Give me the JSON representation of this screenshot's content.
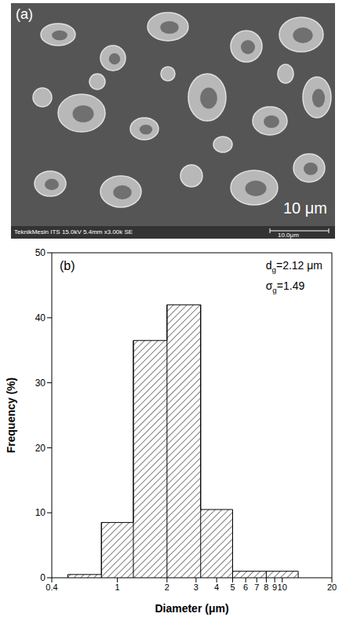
{
  "chart_data": {
    "type": "histogram",
    "title": "(b)",
    "x_label": "Diameter (μm)",
    "y_label": "Frequency (%)",
    "bins": [
      0.5,
      0.8,
      1.25,
      2,
      3.2,
      5,
      8,
      12.5
    ],
    "values": [
      0.5,
      8.5,
      36.5,
      42,
      10.5,
      1,
      1
    ],
    "xlim": [
      0.4,
      20
    ],
    "xticks": [
      0.4,
      1,
      2,
      3,
      4,
      5,
      6,
      7,
      8,
      9,
      10,
      20
    ],
    "ylim": [
      0,
      50
    ],
    "yticks": [
      0,
      10,
      20,
      30,
      40,
      50
    ],
    "log": "x",
    "grid": false,
    "color": "#000000",
    "annotations": [
      "dg=2.12 μm",
      "σg=1.49"
    ]
  },
  "image": {
    "label": "(a)",
    "scale_bar": "10 μm",
    "footer": "TeknikMesin ITS 15.0kV 5.4mm x3.00k SE",
    "footer_scale": "10.0μm"
  }
}
